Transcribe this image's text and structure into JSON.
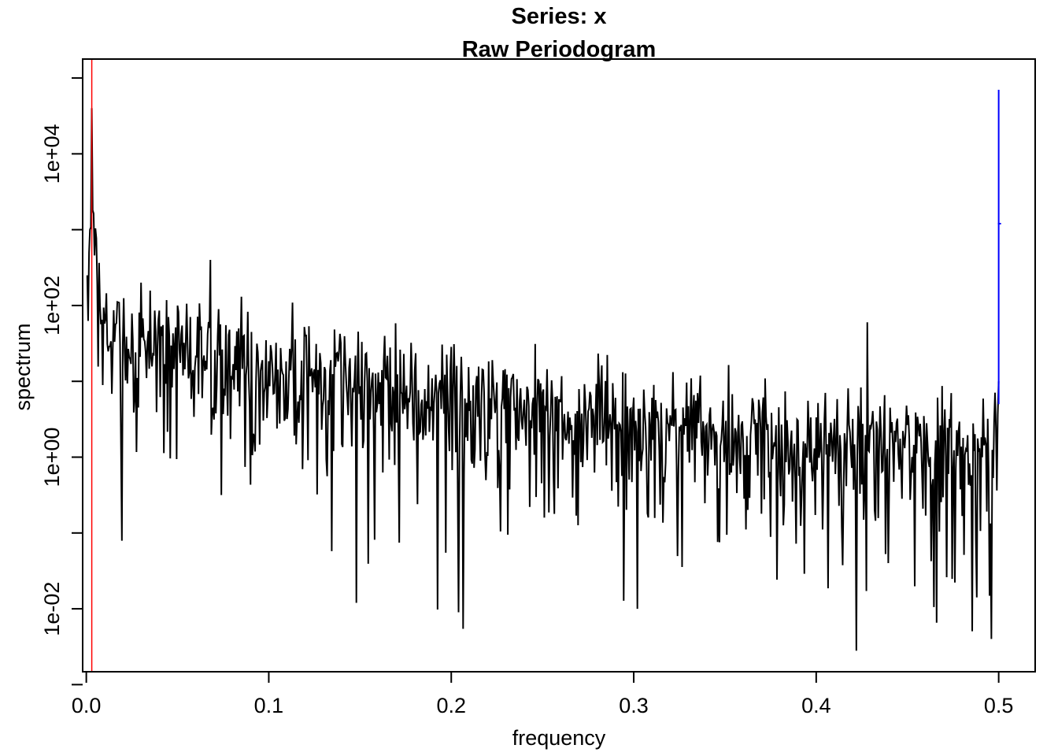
{
  "chart_data": {
    "type": "line",
    "title": "Series: x",
    "subtitle": "Raw Periodogram",
    "xlabel": "frequency",
    "ylabel": "spectrum",
    "xlim": [
      -0.002,
      0.52
    ],
    "ylim_log10": [
      -2.83,
      5.25
    ],
    "x_ticks": [
      0.0,
      0.1,
      0.2,
      0.3,
      0.4,
      0.5
    ],
    "x_tick_labels": [
      "0.0",
      "0.1",
      "0.2",
      "0.3",
      "0.4",
      "0.5"
    ],
    "y_ticks_labeled": [
      0.01,
      1,
      100,
      10000
    ],
    "y_tick_labels": [
      "1e-02",
      "1e+00",
      "1e+02",
      "1e+04"
    ],
    "y_ticks_minor": [
      0.001,
      0.1,
      10,
      1000,
      100000
    ],
    "y_scale": "log10",
    "series": [
      {
        "name": "raw periodogram",
        "color": "#000000",
        "frequency_range": [
          0.0005,
          0.5
        ],
        "n_points": 1000,
        "trend_log10": [
          [
            0.0005,
            2.6
          ],
          [
            0.003,
            3.6
          ],
          [
            0.006,
            2.4
          ],
          [
            0.01,
            1.8
          ],
          [
            0.03,
            1.6
          ],
          [
            0.07,
            1.5
          ],
          [
            0.1,
            1.25
          ],
          [
            0.15,
            1.0
          ],
          [
            0.2,
            0.85
          ],
          [
            0.25,
            0.7
          ],
          [
            0.3,
            0.5
          ],
          [
            0.35,
            0.4
          ],
          [
            0.4,
            0.3
          ],
          [
            0.45,
            0.22
          ],
          [
            0.5,
            0.2
          ]
        ],
        "peaks": [
          {
            "frequency": 0.003,
            "value": 40000
          },
          {
            "frequency": 0.0035,
            "value": 1800
          },
          {
            "frequency": 0.068,
            "value": 400
          },
          {
            "frequency": 0.428,
            "value": 60
          },
          {
            "frequency": 0.5,
            "value": 10
          }
        ],
        "troughs": [
          {
            "frequency": 0.148,
            "value": 0.012
          },
          {
            "frequency": 0.204,
            "value": 0.009
          },
          {
            "frequency": 0.302,
            "value": 0.01
          },
          {
            "frequency": 0.422,
            "value": 0.0028
          },
          {
            "frequency": 0.496,
            "value": 0.004
          }
        ]
      }
    ],
    "reference_line": {
      "frequency": 0.003,
      "color": "#ff0000",
      "orientation": "vertical"
    },
    "bandwidth_bar": {
      "frequency": 0.5,
      "low": 5,
      "high": 70000,
      "mid": 1200,
      "color": "#0000ff"
    }
  }
}
